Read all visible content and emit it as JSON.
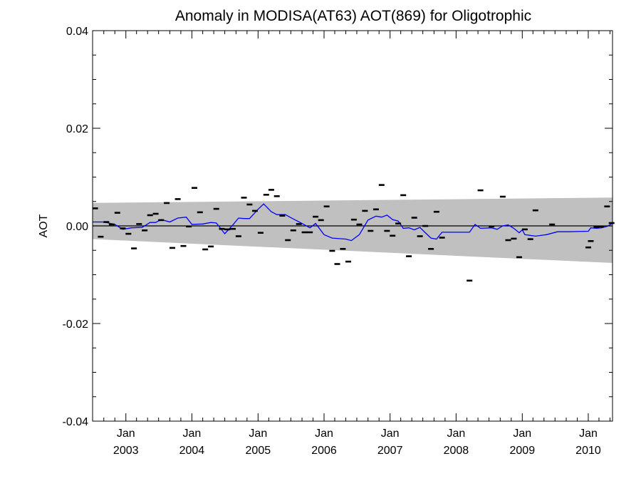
{
  "chart_data": {
    "type": "scatter",
    "title": "Anomaly in MODISA(AT63) AOT(869) for Oligotrophic",
    "xlabel": "",
    "ylabel": "AOT",
    "xlim": [
      "2002-07-01",
      "2010-05-15"
    ],
    "ylim": [
      -0.04,
      0.04
    ],
    "y_ticks": [
      {
        "value": 0.04,
        "label": "0.04"
      },
      {
        "value": 0.02,
        "label": "0.02"
      },
      {
        "value": 0.0,
        "label": "0.00"
      },
      {
        "value": -0.02,
        "label": "-0.02"
      },
      {
        "value": -0.04,
        "label": "-0.04"
      }
    ],
    "x_ticks": [
      {
        "date": "2003-01-01",
        "month": "Jan",
        "year": "2003"
      },
      {
        "date": "2004-01-01",
        "month": "Jan",
        "year": "2004"
      },
      {
        "date": "2005-01-01",
        "month": "Jan",
        "year": "2005"
      },
      {
        "date": "2006-01-01",
        "month": "Jan",
        "year": "2006"
      },
      {
        "date": "2007-01-01",
        "month": "Jan",
        "year": "2007"
      },
      {
        "date": "2008-01-01",
        "month": "Jan",
        "year": "2008"
      },
      {
        "date": "2009-01-01",
        "month": "Jan",
        "year": "2009"
      },
      {
        "date": "2010-01-01",
        "month": "Jan",
        "year": "2010"
      }
    ],
    "grid": false,
    "reference_line": 0.0,
    "band": {
      "color": "#c0c0c0",
      "start": {
        "date": "2002-07-01",
        "upper": 0.0047,
        "lower": -0.0027
      },
      "end": {
        "date": "2010-05-15",
        "upper": 0.0058,
        "lower": -0.0076
      }
    },
    "series": [
      {
        "kind": "points",
        "color": "#000000",
        "marker": "dash",
        "points": [
          {
            "x": "2002-07-15",
            "y": 0.0036
          },
          {
            "x": "2002-08-15",
            "y": -0.0022
          },
          {
            "x": "2002-09-15",
            "y": 0.0008
          },
          {
            "x": "2002-10-15",
            "y": 0.0003
          },
          {
            "x": "2002-11-15",
            "y": 0.0027
          },
          {
            "x": "2002-12-15",
            "y": -0.0005
          },
          {
            "x": "2003-01-15",
            "y": -0.0016
          },
          {
            "x": "2003-02-15",
            "y": -0.0046
          },
          {
            "x": "2003-03-15",
            "y": 0.0004
          },
          {
            "x": "2003-04-15",
            "y": -0.0009
          },
          {
            "x": "2003-05-15",
            "y": 0.0022
          },
          {
            "x": "2003-06-15",
            "y": 0.0025
          },
          {
            "x": "2003-07-15",
            "y": 0.0012
          },
          {
            "x": "2003-08-15",
            "y": 0.0047
          },
          {
            "x": "2003-09-15",
            "y": -0.0045
          },
          {
            "x": "2003-10-15",
            "y": 0.0055
          },
          {
            "x": "2003-11-15",
            "y": -0.0041
          },
          {
            "x": "2003-12-15",
            "y": -0.0001
          },
          {
            "x": "2004-01-15",
            "y": 0.0078
          },
          {
            "x": "2004-02-15",
            "y": 0.0028
          },
          {
            "x": "2004-03-15",
            "y": -0.0048
          },
          {
            "x": "2004-04-15",
            "y": -0.0042
          },
          {
            "x": "2004-05-15",
            "y": 0.0035
          },
          {
            "x": "2004-06-15",
            "y": -0.0006
          },
          {
            "x": "2004-07-15",
            "y": -0.0007
          },
          {
            "x": "2004-08-15",
            "y": -0.0006
          },
          {
            "x": "2004-09-15",
            "y": -0.0021
          },
          {
            "x": "2004-10-15",
            "y": 0.0058
          },
          {
            "x": "2004-11-15",
            "y": 0.0044
          },
          {
            "x": "2004-12-15",
            "y": 0.0031
          },
          {
            "x": "2005-01-15",
            "y": -0.0014
          },
          {
            "x": "2005-02-15",
            "y": 0.0064
          },
          {
            "x": "2005-03-15",
            "y": 0.0074
          },
          {
            "x": "2005-04-15",
            "y": 0.0061
          },
          {
            "x": "2005-05-15",
            "y": 0.0021
          },
          {
            "x": "2005-06-15",
            "y": -0.0029
          },
          {
            "x": "2005-07-15",
            "y": -0.0009
          },
          {
            "x": "2005-08-15",
            "y": 0.0004
          },
          {
            "x": "2005-09-15",
            "y": -0.0013
          },
          {
            "x": "2005-10-15",
            "y": -0.0013
          },
          {
            "x": "2005-11-15",
            "y": 0.0019
          },
          {
            "x": "2005-12-15",
            "y": 0.0012
          },
          {
            "x": "2006-01-15",
            "y": 0.004
          },
          {
            "x": "2006-02-15",
            "y": -0.0051
          },
          {
            "x": "2006-03-15",
            "y": -0.0078
          },
          {
            "x": "2006-04-15",
            "y": -0.0047
          },
          {
            "x": "2006-05-15",
            "y": -0.0073
          },
          {
            "x": "2006-06-15",
            "y": 0.0013
          },
          {
            "x": "2006-07-15",
            "y": 0.0003
          },
          {
            "x": "2006-08-15",
            "y": 0.0031
          },
          {
            "x": "2006-09-15",
            "y": -0.001
          },
          {
            "x": "2006-10-15",
            "y": 0.0034
          },
          {
            "x": "2006-11-15",
            "y": 0.0084
          },
          {
            "x": "2006-12-15",
            "y": -0.001
          },
          {
            "x": "2007-01-15",
            "y": -0.002
          },
          {
            "x": "2007-02-15",
            "y": 0.0005
          },
          {
            "x": "2007-03-15",
            "y": 0.0063
          },
          {
            "x": "2007-04-15",
            "y": -0.0062
          },
          {
            "x": "2007-05-15",
            "y": 0.0017
          },
          {
            "x": "2007-06-15",
            "y": -0.0021
          },
          {
            "x": "2007-07-15",
            "y": 0.0
          },
          {
            "x": "2007-08-15",
            "y": -0.0047
          },
          {
            "x": "2007-09-15",
            "y": 0.0029
          },
          {
            "x": "2007-10-15",
            "y": -0.0024
          },
          {
            "x": "2008-03-15",
            "y": -0.0112
          },
          {
            "x": "2008-05-15",
            "y": 0.0073
          },
          {
            "x": "2008-07-15",
            "y": -0.0001
          },
          {
            "x": "2008-09-15",
            "y": 0.006
          },
          {
            "x": "2008-10-15",
            "y": -0.0029
          },
          {
            "x": "2008-11-15",
            "y": -0.0026
          },
          {
            "x": "2008-12-15",
            "y": -0.0064
          },
          {
            "x": "2009-01-15",
            "y": -0.0007
          },
          {
            "x": "2009-02-15",
            "y": -0.0027
          },
          {
            "x": "2009-03-15",
            "y": 0.0032
          },
          {
            "x": "2009-06-15",
            "y": 0.0003
          },
          {
            "x": "2010-01-01",
            "y": -0.0044
          },
          {
            "x": "2010-01-15",
            "y": -0.0031
          },
          {
            "x": "2010-02-15",
            "y": -0.0002
          },
          {
            "x": "2010-03-15",
            "y": -0.0001
          },
          {
            "x": "2010-04-15",
            "y": 0.004
          },
          {
            "x": "2010-05-10",
            "y": 0.0006
          }
        ]
      },
      {
        "kind": "line",
        "color": "#0000ff",
        "points": [
          {
            "x": "2002-07-01",
            "y": 0.0008
          },
          {
            "x": "2002-09-01",
            "y": 0.0008
          },
          {
            "x": "2002-11-01",
            "y": 0.0003
          },
          {
            "x": "2002-12-15",
            "y": -0.0007
          },
          {
            "x": "2003-02-01",
            "y": -0.0004
          },
          {
            "x": "2003-04-01",
            "y": -0.0003
          },
          {
            "x": "2003-05-15",
            "y": 0.0007
          },
          {
            "x": "2003-06-15",
            "y": 0.0007
          },
          {
            "x": "2003-07-15",
            "y": 0.0013
          },
          {
            "x": "2003-09-01",
            "y": 0.0008
          },
          {
            "x": "2003-10-15",
            "y": 0.0016
          },
          {
            "x": "2003-12-01",
            "y": 0.0018
          },
          {
            "x": "2004-01-01",
            "y": 0.0003
          },
          {
            "x": "2004-03-01",
            "y": 0.0004
          },
          {
            "x": "2004-04-15",
            "y": 0.0007
          },
          {
            "x": "2004-05-15",
            "y": 0.0006
          },
          {
            "x": "2004-07-01",
            "y": -0.0016
          },
          {
            "x": "2004-08-15",
            "y": 0.0002
          },
          {
            "x": "2004-09-15",
            "y": 0.0016
          },
          {
            "x": "2004-10-15",
            "y": 0.0015
          },
          {
            "x": "2004-11-15",
            "y": 0.0015
          },
          {
            "x": "2005-01-01",
            "y": 0.0034
          },
          {
            "x": "2005-02-01",
            "y": 0.0045
          },
          {
            "x": "2005-03-15",
            "y": 0.0029
          },
          {
            "x": "2005-04-15",
            "y": 0.0023
          },
          {
            "x": "2005-06-01",
            "y": 0.0023
          },
          {
            "x": "2005-07-01",
            "y": 0.0017
          },
          {
            "x": "2005-09-01",
            "y": 0.0005
          },
          {
            "x": "2005-10-15",
            "y": -0.0004
          },
          {
            "x": "2005-11-15",
            "y": 0.0005
          },
          {
            "x": "2006-01-01",
            "y": -0.0018
          },
          {
            "x": "2006-02-15",
            "y": -0.0025
          },
          {
            "x": "2006-05-01",
            "y": -0.0027
          },
          {
            "x": "2006-06-01",
            "y": -0.003
          },
          {
            "x": "2006-07-15",
            "y": -0.0018
          },
          {
            "x": "2006-09-01",
            "y": 0.0012
          },
          {
            "x": "2006-10-15",
            "y": 0.002
          },
          {
            "x": "2006-11-15",
            "y": 0.0018
          },
          {
            "x": "2006-12-15",
            "y": 0.0022
          },
          {
            "x": "2007-01-15",
            "y": 0.0013
          },
          {
            "x": "2007-02-15",
            "y": 0.001
          },
          {
            "x": "2007-03-15",
            "y": -0.0005
          },
          {
            "x": "2007-04-15",
            "y": -0.0004
          },
          {
            "x": "2007-05-15",
            "y": -0.0008
          },
          {
            "x": "2007-06-15",
            "y": -0.0003
          },
          {
            "x": "2007-07-15",
            "y": -0.0014
          },
          {
            "x": "2007-08-15",
            "y": -0.0025
          },
          {
            "x": "2007-09-15",
            "y": -0.0027
          },
          {
            "x": "2007-10-15",
            "y": -0.0013
          },
          {
            "x": "2008-03-15",
            "y": -0.0013
          },
          {
            "x": "2008-04-15",
            "y": 0.0003
          },
          {
            "x": "2008-05-15",
            "y": -0.0005
          },
          {
            "x": "2008-07-15",
            "y": -0.0004
          },
          {
            "x": "2008-08-15",
            "y": -0.0007
          },
          {
            "x": "2008-09-15",
            "y": 0.0
          },
          {
            "x": "2008-10-15",
            "y": 0.0002
          },
          {
            "x": "2008-11-15",
            "y": -0.0005
          },
          {
            "x": "2008-12-15",
            "y": -0.0014
          },
          {
            "x": "2009-01-01",
            "y": -0.0008
          },
          {
            "x": "2009-01-15",
            "y": -0.0018
          },
          {
            "x": "2009-03-15",
            "y": -0.0021
          },
          {
            "x": "2009-05-15",
            "y": -0.0018
          },
          {
            "x": "2009-07-15",
            "y": -0.0012
          },
          {
            "x": "2009-09-15",
            "y": -0.0012
          },
          {
            "x": "2010-01-01",
            "y": -0.0011
          },
          {
            "x": "2010-01-15",
            "y": -0.0004
          },
          {
            "x": "2010-02-15",
            "y": -0.0005
          },
          {
            "x": "2010-03-15",
            "y": -0.0004
          },
          {
            "x": "2010-04-15",
            "y": -0.0001
          },
          {
            "x": "2010-05-15",
            "y": 0.0005
          }
        ]
      }
    ]
  }
}
